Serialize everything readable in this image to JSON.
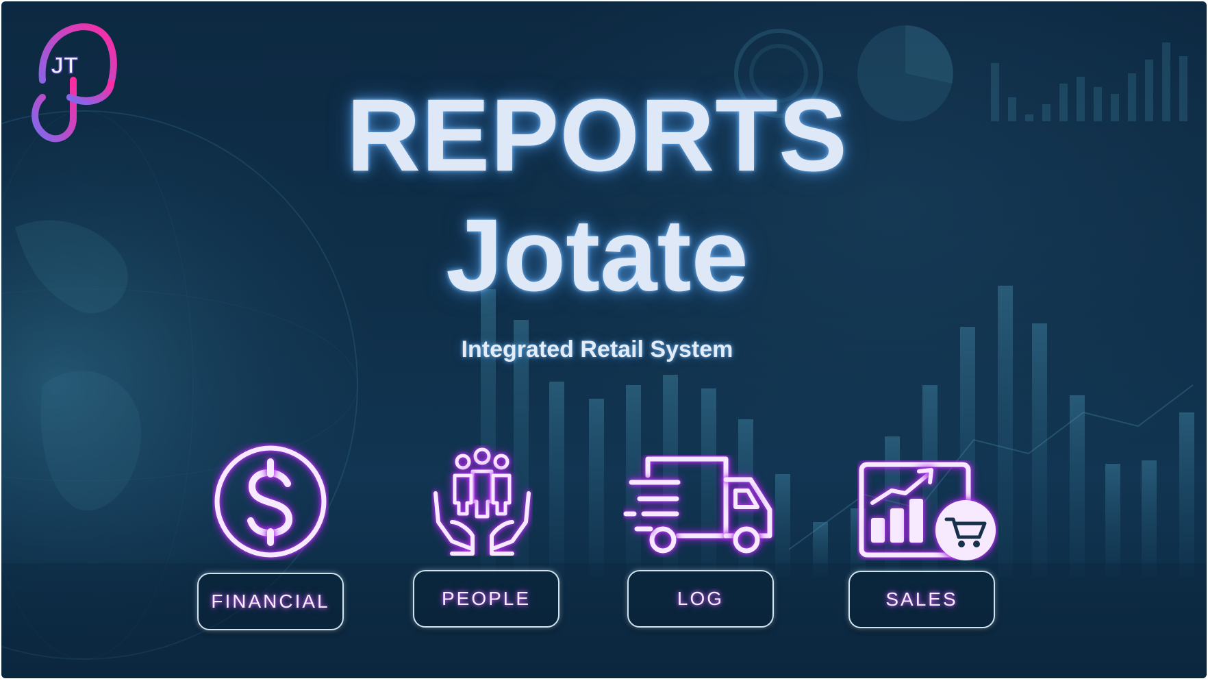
{
  "header": {
    "logo_letters": "JT",
    "title": "REPORTS",
    "subtitle": "Jotate",
    "tagline": "Integrated Retail System"
  },
  "modules": [
    {
      "id": "financial",
      "label": "FINANCIAL",
      "icon": "dollar-circle-icon"
    },
    {
      "id": "people",
      "label": "PEOPLE",
      "icon": "people-hands-icon"
    },
    {
      "id": "log",
      "label": "LOG",
      "icon": "delivery-truck-icon"
    },
    {
      "id": "sales",
      "label": "SALES",
      "icon": "sales-chart-cart-icon"
    }
  ],
  "colors": {
    "background": "#0f2f49",
    "title_glow": "#78beff",
    "icon_glow": "#c23cff",
    "button_border": "#cfe4ef",
    "logo_gradient_start": "#7b6cf0",
    "logo_gradient_end": "#ff2aa0"
  }
}
